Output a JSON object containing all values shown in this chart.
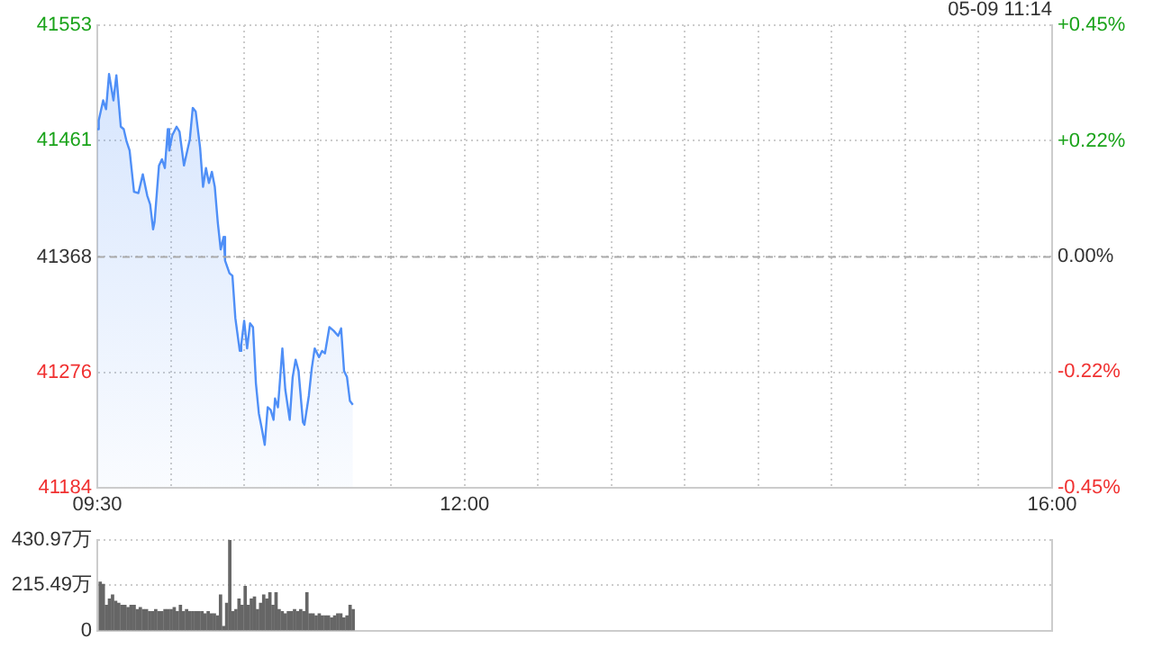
{
  "chart_data": [
    {
      "type": "area",
      "annotations": [
        "05-09 11:14"
      ],
      "grid": true,
      "marker": "none",
      "x": [
        9.5,
        9.51,
        9.54,
        9.56,
        9.58,
        9.61,
        9.63,
        9.66,
        9.68,
        9.7,
        9.72,
        9.75,
        9.78,
        9.81,
        9.84,
        9.86,
        9.88,
        9.89,
        9.92,
        9.94,
        9.96,
        9.98,
        9.99,
        10.01,
        10.04,
        10.06,
        10.09,
        10.13,
        10.15,
        10.17,
        10.2,
        10.22,
        10.24,
        10.26,
        10.28,
        10.3,
        10.32,
        10.34,
        10.36,
        10.37,
        10.4,
        10.42,
        10.44,
        10.47,
        10.48,
        10.5,
        10.52,
        10.54,
        10.56,
        10.58,
        10.6,
        10.62,
        10.64,
        10.66,
        10.68,
        10.7,
        10.71,
        10.73,
        10.76,
        10.78,
        10.81,
        10.83,
        10.85,
        10.87,
        10.9,
        10.91,
        10.94,
        10.96,
        10.98,
        11.01,
        11.03,
        11.05,
        11.08,
        11.11,
        11.14,
        11.16,
        11.18,
        11.2,
        11.22,
        11.24
      ],
      "series": [
        {
          "color": "#4f8ff7",
          "values": [
            41470,
            41477,
            41493,
            41486,
            41514,
            41493,
            41513,
            41472,
            41470,
            41460,
            41453,
            41420,
            41419,
            41434,
            41417,
            41410,
            41390,
            41396,
            41441,
            41446,
            41439,
            41470,
            41453,
            41465,
            41472,
            41468,
            41441,
            41462,
            41487,
            41484,
            41455,
            41424,
            41439,
            41427,
            41436,
            41424,
            41396,
            41374,
            41384,
            41365,
            41355,
            41353,
            41319,
            41293,
            41298,
            41317,
            41295,
            41315,
            41312,
            41267,
            41243,
            41231,
            41218,
            41248,
            41246,
            41238,
            41255,
            41248,
            41295,
            41262,
            41238,
            41272,
            41286,
            41277,
            41236,
            41234,
            41257,
            41279,
            41295,
            41288,
            41293,
            41291,
            41312,
            41309,
            41305,
            41311,
            41277,
            41272,
            41253,
            41250
          ]
        }
      ],
      "xlim": [
        9.5,
        16
      ],
      "xticks": [
        {
          "value": 9.5,
          "label": "09:30"
        },
        {
          "value": 10,
          "label": null
        },
        {
          "value": 10.5,
          "label": null
        },
        {
          "value": 11,
          "label": null
        },
        {
          "value": 11.5,
          "label": null
        },
        {
          "value": 12,
          "label": "12:00"
        },
        {
          "value": 12.5,
          "label": null
        },
        {
          "value": 13,
          "label": null
        },
        {
          "value": 13.5,
          "label": null
        },
        {
          "value": 14,
          "label": null
        },
        {
          "value": 14.5,
          "label": null
        },
        {
          "value": 15,
          "label": null
        },
        {
          "value": 15.5,
          "label": null
        },
        {
          "value": 16,
          "label": "16:00"
        }
      ],
      "ylim": [
        41184,
        41553
      ],
      "yticks": [
        41184,
        41276,
        41368,
        41461,
        41553
      ],
      "y2lim": [
        -0.45,
        0.45
      ],
      "y2ticks": [
        {
          "value": -0.45,
          "label": "-0.45%"
        },
        {
          "value": -0.224,
          "label": "-0.22%"
        },
        {
          "value": 0,
          "label": "0.00%"
        },
        {
          "value": 0.224,
          "label": "+0.22%"
        },
        {
          "value": 0.45,
          "label": "+0.45%"
        }
      ],
      "ref_lines": [
        {
          "axis": "y",
          "value": 41368,
          "color": "#aaaaaa",
          "line_style": "dashed"
        }
      ]
    },
    {
      "type": "bar",
      "grid": "y",
      "tick_labels": "y",
      "xlim": [
        9.5,
        16
      ],
      "x": [
        9.52,
        9.541,
        9.562,
        9.583,
        9.604,
        9.625,
        9.646,
        9.667,
        9.688,
        9.709,
        9.73,
        9.751,
        9.772,
        9.793,
        9.814,
        9.835,
        9.856,
        9.877,
        9.898,
        9.919,
        9.94,
        9.961,
        9.982,
        10.003,
        10.024,
        10.045,
        10.066,
        10.087,
        10.108,
        10.129,
        10.15,
        10.171,
        10.192,
        10.213,
        10.234,
        10.255,
        10.276,
        10.297,
        10.318,
        10.339,
        10.36,
        10.381,
        10.402,
        10.423,
        10.444,
        10.465,
        10.486,
        10.507,
        10.528,
        10.549,
        10.57,
        10.591,
        10.612,
        10.633,
        10.654,
        10.675,
        10.696,
        10.717,
        10.738,
        10.759,
        10.78,
        10.801,
        10.822,
        10.843,
        10.864,
        10.885,
        10.906,
        10.927,
        10.948,
        10.969,
        10.99,
        11.011,
        11.032,
        11.053,
        11.074,
        11.095,
        11.116,
        11.137,
        11.158,
        11.179,
        11.2,
        11.221,
        11.242
      ],
      "series": [
        {
          "color": "#666666",
          "values": [
            230,
            220,
            120,
            150,
            170,
            140,
            130,
            120,
            120,
            110,
            120,
            120,
            100,
            110,
            100,
            100,
            90,
            90,
            100,
            90,
            90,
            100,
            100,
            100,
            110,
            90,
            120,
            90,
            100,
            90,
            90,
            90,
            90,
            90,
            80,
            90,
            80,
            80,
            70,
            170,
            20,
            130,
            430,
            90,
            100,
            150,
            120,
            210,
            120,
            150,
            160,
            100,
            130,
            170,
            150,
            180,
            120,
            180,
            100,
            90,
            80,
            90,
            90,
            100,
            90,
            100,
            90,
            180,
            80,
            80,
            70,
            80,
            70,
            70,
            70,
            60,
            70,
            80,
            80,
            60,
            70,
            120,
            100
          ]
        }
      ],
      "ylim": [
        0,
        430.97
      ],
      "yticks": [
        0,
        {
          "value": 215.49,
          "label": "215.49万"
        },
        {
          "value": 430.97,
          "label": "430.97万"
        }
      ]
    }
  ]
}
